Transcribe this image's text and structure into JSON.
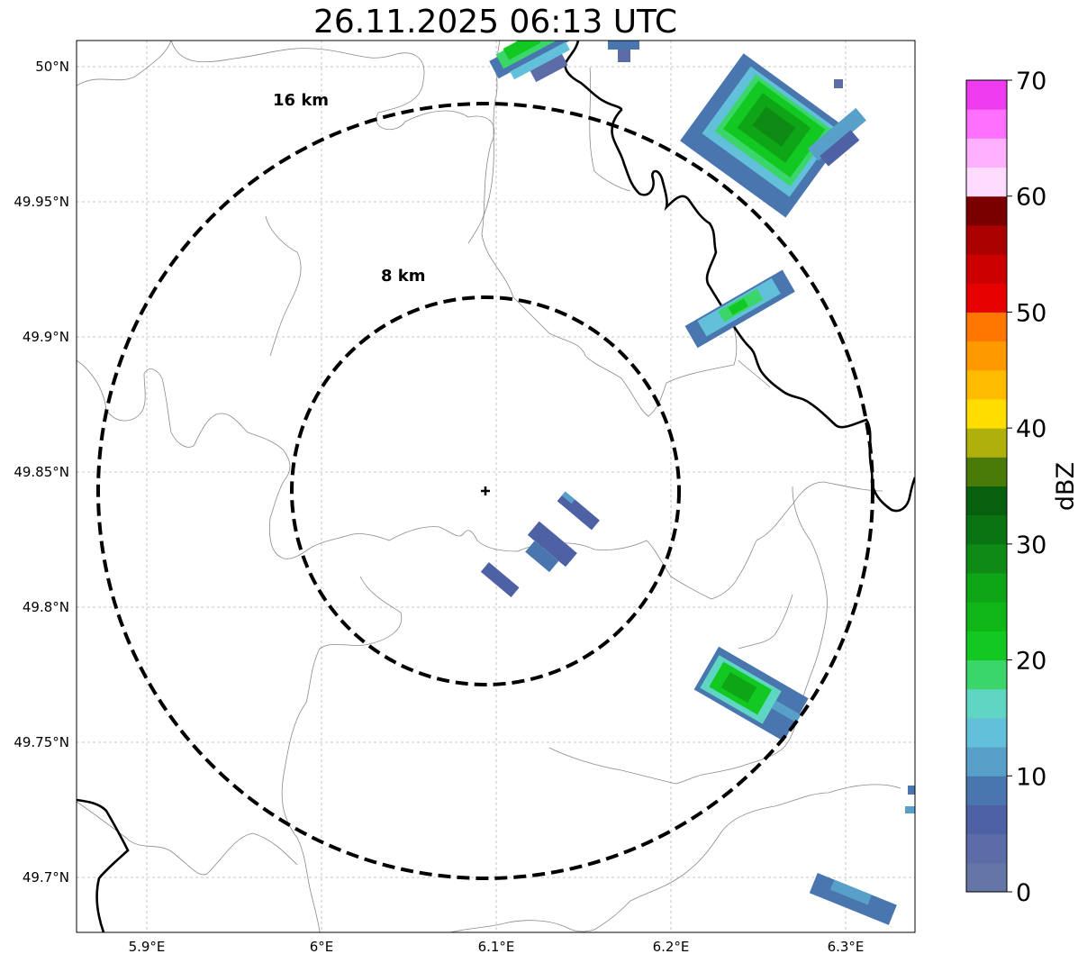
{
  "title": "26.11.2025 06:13 UTC",
  "map": {
    "lat_ticks": [
      "50°N",
      "49.95°N",
      "49.9°N",
      "49.85°N",
      "49.8°N",
      "49.75°N",
      "49.7°N"
    ],
    "lon_ticks": [
      "5.9°E",
      "6°E",
      "6.1°E",
      "6.2°E",
      "6.3°E"
    ],
    "ring_labels": [
      "16 km",
      "8 km"
    ],
    "grid": "dashed light grey",
    "center_marker": "plus-icon"
  },
  "colorbar": {
    "label": "dBZ",
    "ticks": [
      "0",
      "10",
      "20",
      "30",
      "40",
      "50",
      "60",
      "70"
    ],
    "colors": [
      "#6675a8",
      "#5b6ca6",
      "#4e61a4",
      "#4a76b0",
      "#58a0c8",
      "#62c0da",
      "#5fd6c4",
      "#3bd66a",
      "#12c922",
      "#10b618",
      "#0ea516",
      "#0e8b15",
      "#0b7412",
      "#07600e",
      "#4a7a08",
      "#b0b00a",
      "#ffdd00",
      "#ffbb00",
      "#ff9900",
      "#ff7700",
      "#e60000",
      "#cc0000",
      "#aa0000",
      "#7a0000",
      "#ffdcff",
      "#ffb0ff",
      "#ff70ff",
      "#f03cf0"
    ]
  }
}
